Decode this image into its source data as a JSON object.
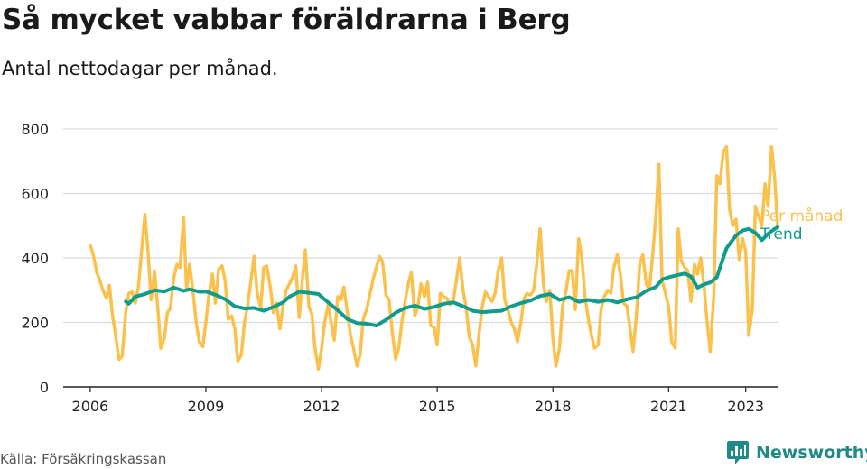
{
  "header": {
    "title": "Så mycket vabbar föräldrarna i Berg",
    "subtitle": "Antal nettodagar per månad."
  },
  "footer": {
    "source": "Källa: Försäkringskassan",
    "brand": "Newsworthy",
    "brand_icon": "bar-chart-icon"
  },
  "colors": {
    "monthly": "#fbc14c",
    "trend": "#109b8c",
    "grid": "#d9d9d9",
    "axis": "#222222",
    "brand": "#1f8a87"
  },
  "chart_data": {
    "type": "line",
    "title": "Så mycket vabbar föräldrarna i Berg",
    "subtitle": "Antal nettodagar per månad.",
    "xlabel": "",
    "ylabel": "",
    "ylim": [
      0,
      800
    ],
    "xlim": [
      2005.3,
      2023.85
    ],
    "y_ticks": [
      0,
      200,
      400,
      600,
      800
    ],
    "x_ticks": [
      2006,
      2009,
      2012,
      2015,
      2018,
      2021,
      2023
    ],
    "grid": "horizontal",
    "legend": "inline-right",
    "series": [
      {
        "name": "Per månad",
        "color": "#fbc14c",
        "points": [
          [
            2006.0,
            440
          ],
          [
            2006.08,
            410
          ],
          [
            2006.17,
            355
          ],
          [
            2006.25,
            330
          ],
          [
            2006.33,
            300
          ],
          [
            2006.42,
            275
          ],
          [
            2006.5,
            315
          ],
          [
            2006.58,
            220
          ],
          [
            2006.67,
            150
          ],
          [
            2006.75,
            85
          ],
          [
            2006.83,
            95
          ],
          [
            2006.92,
            230
          ],
          [
            2007.0,
            290
          ],
          [
            2007.08,
            295
          ],
          [
            2007.17,
            260
          ],
          [
            2007.25,
            310
          ],
          [
            2007.33,
            420
          ],
          [
            2007.42,
            535
          ],
          [
            2007.5,
            420
          ],
          [
            2007.58,
            270
          ],
          [
            2007.67,
            360
          ],
          [
            2007.75,
            250
          ],
          [
            2007.83,
            120
          ],
          [
            2007.92,
            150
          ],
          [
            2008.0,
            230
          ],
          [
            2008.08,
            245
          ],
          [
            2008.17,
            340
          ],
          [
            2008.25,
            380
          ],
          [
            2008.33,
            370
          ],
          [
            2008.42,
            525
          ],
          [
            2008.5,
            300
          ],
          [
            2008.58,
            380
          ],
          [
            2008.67,
            290
          ],
          [
            2008.75,
            200
          ],
          [
            2008.83,
            140
          ],
          [
            2008.92,
            125
          ],
          [
            2009.0,
            200
          ],
          [
            2009.08,
            290
          ],
          [
            2009.17,
            350
          ],
          [
            2009.25,
            260
          ],
          [
            2009.33,
            365
          ],
          [
            2009.42,
            375
          ],
          [
            2009.5,
            330
          ],
          [
            2009.58,
            210
          ],
          [
            2009.67,
            220
          ],
          [
            2009.75,
            180
          ],
          [
            2009.83,
            80
          ],
          [
            2009.92,
            100
          ],
          [
            2010.0,
            200
          ],
          [
            2010.08,
            250
          ],
          [
            2010.17,
            330
          ],
          [
            2010.25,
            405
          ],
          [
            2010.33,
            290
          ],
          [
            2010.42,
            245
          ],
          [
            2010.5,
            370
          ],
          [
            2010.58,
            375
          ],
          [
            2010.67,
            310
          ],
          [
            2010.75,
            230
          ],
          [
            2010.83,
            260
          ],
          [
            2010.92,
            180
          ],
          [
            2011.0,
            250
          ],
          [
            2011.08,
            300
          ],
          [
            2011.17,
            320
          ],
          [
            2011.25,
            340
          ],
          [
            2011.33,
            375
          ],
          [
            2011.42,
            215
          ],
          [
            2011.5,
            330
          ],
          [
            2011.58,
            425
          ],
          [
            2011.67,
            250
          ],
          [
            2011.75,
            225
          ],
          [
            2011.83,
            120
          ],
          [
            2011.92,
            55
          ],
          [
            2012.0,
            120
          ],
          [
            2012.08,
            200
          ],
          [
            2012.17,
            255
          ],
          [
            2012.25,
            200
          ],
          [
            2012.33,
            145
          ],
          [
            2012.42,
            280
          ],
          [
            2012.5,
            270
          ],
          [
            2012.58,
            310
          ],
          [
            2012.67,
            230
          ],
          [
            2012.75,
            160
          ],
          [
            2012.83,
            120
          ],
          [
            2012.92,
            65
          ],
          [
            2013.0,
            100
          ],
          [
            2013.08,
            210
          ],
          [
            2013.17,
            240
          ],
          [
            2013.25,
            285
          ],
          [
            2013.33,
            330
          ],
          [
            2013.42,
            370
          ],
          [
            2013.5,
            405
          ],
          [
            2013.58,
            390
          ],
          [
            2013.67,
            285
          ],
          [
            2013.75,
            270
          ],
          [
            2013.83,
            175
          ],
          [
            2013.92,
            85
          ],
          [
            2014.0,
            120
          ],
          [
            2014.08,
            200
          ],
          [
            2014.17,
            270
          ],
          [
            2014.25,
            320
          ],
          [
            2014.33,
            355
          ],
          [
            2014.42,
            220
          ],
          [
            2014.5,
            250
          ],
          [
            2014.58,
            320
          ],
          [
            2014.67,
            280
          ],
          [
            2014.75,
            325
          ],
          [
            2014.83,
            190
          ],
          [
            2014.92,
            185
          ],
          [
            2015.0,
            130
          ],
          [
            2015.08,
            290
          ],
          [
            2015.17,
            280
          ],
          [
            2015.25,
            275
          ],
          [
            2015.33,
            255
          ],
          [
            2015.42,
            270
          ],
          [
            2015.5,
            335
          ],
          [
            2015.58,
            400
          ],
          [
            2015.67,
            300
          ],
          [
            2015.75,
            245
          ],
          [
            2015.83,
            155
          ],
          [
            2015.92,
            130
          ],
          [
            2016.0,
            65
          ],
          [
            2016.08,
            160
          ],
          [
            2016.17,
            250
          ],
          [
            2016.25,
            295
          ],
          [
            2016.33,
            280
          ],
          [
            2016.42,
            265
          ],
          [
            2016.5,
            290
          ],
          [
            2016.58,
            360
          ],
          [
            2016.67,
            400
          ],
          [
            2016.75,
            270
          ],
          [
            2016.83,
            240
          ],
          [
            2016.92,
            200
          ],
          [
            2017.0,
            180
          ],
          [
            2017.08,
            140
          ],
          [
            2017.17,
            200
          ],
          [
            2017.25,
            275
          ],
          [
            2017.33,
            290
          ],
          [
            2017.42,
            285
          ],
          [
            2017.5,
            300
          ],
          [
            2017.58,
            380
          ],
          [
            2017.67,
            490
          ],
          [
            2017.75,
            320
          ],
          [
            2017.83,
            265
          ],
          [
            2017.92,
            300
          ],
          [
            2018.0,
            150
          ],
          [
            2018.08,
            65
          ],
          [
            2018.17,
            120
          ],
          [
            2018.25,
            250
          ],
          [
            2018.33,
            290
          ],
          [
            2018.42,
            360
          ],
          [
            2018.5,
            360
          ],
          [
            2018.58,
            240
          ],
          [
            2018.67,
            460
          ],
          [
            2018.75,
            400
          ],
          [
            2018.83,
            280
          ],
          [
            2018.92,
            210
          ],
          [
            2019.0,
            160
          ],
          [
            2019.08,
            120
          ],
          [
            2019.17,
            130
          ],
          [
            2019.25,
            240
          ],
          [
            2019.33,
            280
          ],
          [
            2019.42,
            300
          ],
          [
            2019.5,
            290
          ],
          [
            2019.58,
            370
          ],
          [
            2019.67,
            410
          ],
          [
            2019.75,
            350
          ],
          [
            2019.83,
            260
          ],
          [
            2019.92,
            250
          ],
          [
            2020.0,
            180
          ],
          [
            2020.08,
            110
          ],
          [
            2020.17,
            230
          ],
          [
            2020.25,
            380
          ],
          [
            2020.33,
            410
          ],
          [
            2020.42,
            320
          ],
          [
            2020.5,
            300
          ],
          [
            2020.58,
            400
          ],
          [
            2020.67,
            530
          ],
          [
            2020.75,
            690
          ],
          [
            2020.83,
            330
          ],
          [
            2020.92,
            290
          ],
          [
            2021.0,
            250
          ],
          [
            2021.08,
            140
          ],
          [
            2021.17,
            120
          ],
          [
            2021.25,
            490
          ],
          [
            2021.33,
            390
          ],
          [
            2021.42,
            370
          ],
          [
            2021.5,
            360
          ],
          [
            2021.58,
            265
          ],
          [
            2021.67,
            380
          ],
          [
            2021.75,
            350
          ],
          [
            2021.83,
            400
          ],
          [
            2021.92,
            310
          ],
          [
            2022.0,
            200
          ],
          [
            2022.08,
            110
          ],
          [
            2022.17,
            280
          ],
          [
            2022.25,
            655
          ],
          [
            2022.33,
            630
          ],
          [
            2022.42,
            730
          ],
          [
            2022.5,
            745
          ],
          [
            2022.58,
            550
          ],
          [
            2022.67,
            500
          ],
          [
            2022.75,
            520
          ],
          [
            2022.83,
            395
          ],
          [
            2022.92,
            460
          ],
          [
            2023.0,
            420
          ],
          [
            2023.08,
            160
          ],
          [
            2023.17,
            240
          ],
          [
            2023.25,
            560
          ],
          [
            2023.33,
            530
          ],
          [
            2023.42,
            500
          ],
          [
            2023.5,
            630
          ],
          [
            2023.58,
            560
          ],
          [
            2023.67,
            745
          ],
          [
            2023.75,
            650
          ],
          [
            2023.83,
            495
          ]
        ]
      },
      {
        "name": "Trend",
        "color": "#109b8c",
        "points": [
          [
            2006.92,
            265
          ],
          [
            2007.0,
            258
          ],
          [
            2007.17,
            280
          ],
          [
            2007.42,
            288
          ],
          [
            2007.67,
            300
          ],
          [
            2007.92,
            296
          ],
          [
            2008.17,
            308
          ],
          [
            2008.42,
            298
          ],
          [
            2008.58,
            303
          ],
          [
            2008.83,
            295
          ],
          [
            2009.0,
            296
          ],
          [
            2009.25,
            286
          ],
          [
            2009.5,
            272
          ],
          [
            2009.75,
            250
          ],
          [
            2010.0,
            243
          ],
          [
            2010.25,
            245
          ],
          [
            2010.5,
            236
          ],
          [
            2010.75,
            248
          ],
          [
            2011.0,
            262
          ],
          [
            2011.17,
            280
          ],
          [
            2011.42,
            295
          ],
          [
            2011.67,
            292
          ],
          [
            2011.92,
            288
          ],
          [
            2012.17,
            262
          ],
          [
            2012.42,
            238
          ],
          [
            2012.67,
            210
          ],
          [
            2012.92,
            198
          ],
          [
            2013.17,
            196
          ],
          [
            2013.42,
            190
          ],
          [
            2013.67,
            208
          ],
          [
            2013.92,
            230
          ],
          [
            2014.17,
            245
          ],
          [
            2014.42,
            252
          ],
          [
            2014.67,
            242
          ],
          [
            2014.92,
            248
          ],
          [
            2015.17,
            258
          ],
          [
            2015.42,
            262
          ],
          [
            2015.67,
            250
          ],
          [
            2015.92,
            236
          ],
          [
            2016.17,
            232
          ],
          [
            2016.42,
            234
          ],
          [
            2016.67,
            236
          ],
          [
            2016.92,
            250
          ],
          [
            2017.17,
            260
          ],
          [
            2017.42,
            268
          ],
          [
            2017.67,
            282
          ],
          [
            2017.92,
            288
          ],
          [
            2018.17,
            270
          ],
          [
            2018.42,
            278
          ],
          [
            2018.67,
            264
          ],
          [
            2018.92,
            270
          ],
          [
            2019.17,
            264
          ],
          [
            2019.42,
            270
          ],
          [
            2019.67,
            262
          ],
          [
            2019.92,
            272
          ],
          [
            2020.17,
            278
          ],
          [
            2020.42,
            298
          ],
          [
            2020.67,
            310
          ],
          [
            2020.83,
            333
          ],
          [
            2021.0,
            340
          ],
          [
            2021.17,
            345
          ],
          [
            2021.42,
            352
          ],
          [
            2021.58,
            342
          ],
          [
            2021.75,
            308
          ],
          [
            2021.92,
            318
          ],
          [
            2022.08,
            324
          ],
          [
            2022.25,
            340
          ],
          [
            2022.5,
            430
          ],
          [
            2022.75,
            470
          ],
          [
            2022.92,
            485
          ],
          [
            2023.08,
            490
          ],
          [
            2023.25,
            478
          ],
          [
            2023.42,
            455
          ],
          [
            2023.58,
            475
          ],
          [
            2023.75,
            490
          ],
          [
            2023.83,
            495
          ]
        ]
      }
    ]
  }
}
